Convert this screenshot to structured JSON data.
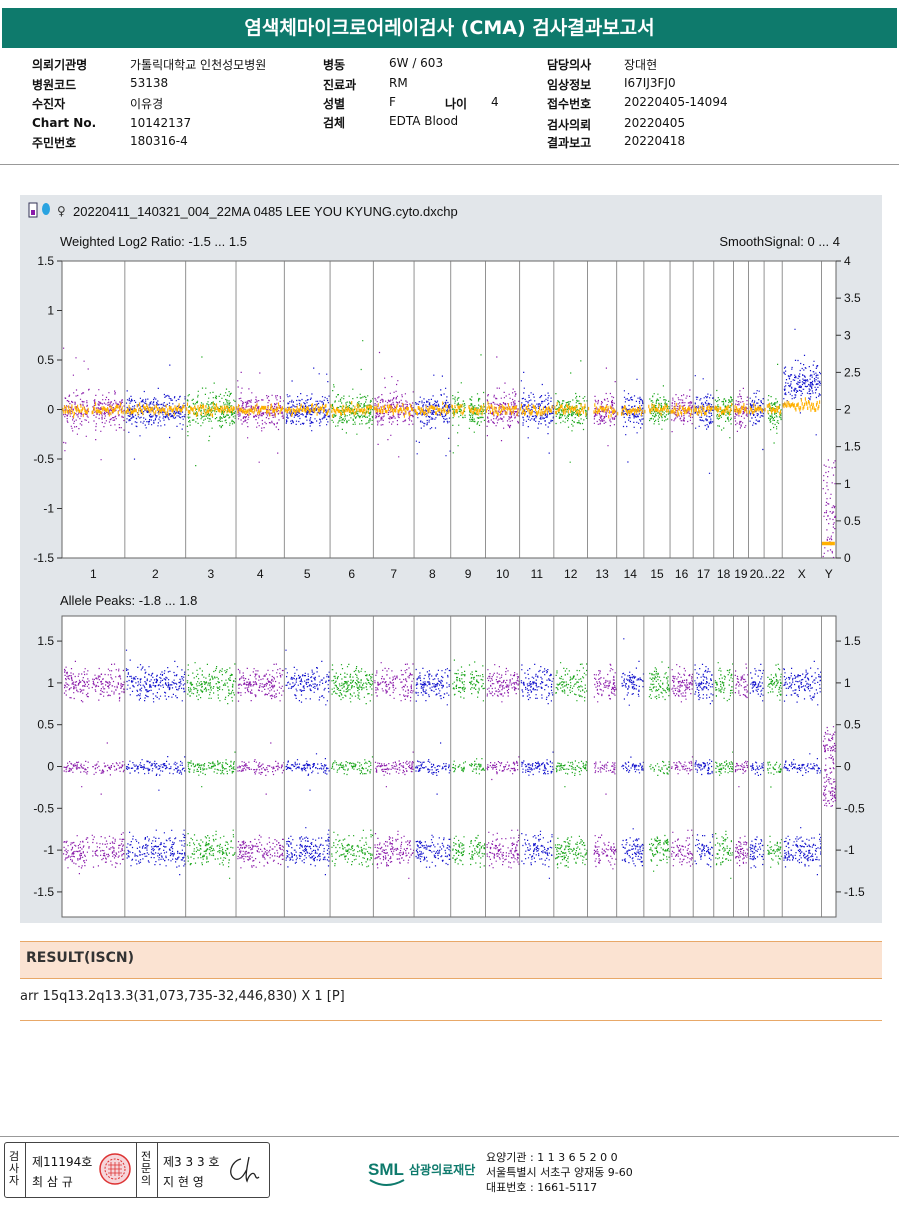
{
  "header": {
    "title": "염색체마이크로어레이검사 (CMA) 검사결과보고서"
  },
  "info": {
    "col1": [
      {
        "label": "의뢰기관명",
        "value": "가톨릭대학교 인천성모병원"
      },
      {
        "label": "병원코드",
        "value": "53138"
      },
      {
        "label": "수진자",
        "value": "이유경"
      },
      {
        "label": "Chart No.",
        "value": "10142137"
      },
      {
        "label": "주민번호",
        "value": "180316-4"
      }
    ],
    "col2": [
      {
        "label": "병동",
        "value": "6W / 603"
      },
      {
        "label": "진료과",
        "value": "RM"
      },
      {
        "label": "성별",
        "value": "F"
      },
      {
        "label": "검체",
        "value": "EDTA Blood"
      }
    ],
    "age": {
      "label": "나이",
      "value": "4"
    },
    "col3": [
      {
        "label": "담당의사",
        "value": "장대현"
      },
      {
        "label": "임상정보",
        "value": "I67IJ3FJ0"
      },
      {
        "label": "접수번호",
        "value": "20220405-14094"
      },
      {
        "label": "검사의뢰",
        "value": "20220405"
      },
      {
        "label": "결과보고",
        "value": "20220418"
      }
    ]
  },
  "chart_data": [
    {
      "type": "scatter",
      "file_name": "20220411_140321_004_22MA 0485 LEE YOU KYUNG.cyto.dxchp",
      "title": "Weighted Log2 Ratio: -1.5 ... 1.5",
      "right_title": "SmoothSignal: 0 ... 4",
      "ylim": [
        -1.5,
        1.5
      ],
      "yticks": [
        "1.5",
        "1",
        "0.5",
        "0",
        "-0.5",
        "-1",
        "-1.5"
      ],
      "y2lim": [
        0,
        4
      ],
      "y2ticks": [
        "4",
        "3.5",
        "3",
        "2.5",
        "2",
        "1.5",
        "1",
        "0.5",
        "0"
      ],
      "categories": [
        "1",
        "2",
        "3",
        "4",
        "5",
        "6",
        "7",
        "8",
        "9",
        "10",
        "11",
        "12",
        "13",
        "14",
        "15",
        "16",
        "17",
        "18",
        "19",
        "20",
        "...22",
        "X",
        "Y"
      ]
    },
    {
      "type": "scatter",
      "title": "Allele Peaks: -1.8 ... 1.8",
      "ylim": [
        -1.8,
        1.8
      ],
      "yticks": [
        "1.5",
        "1",
        "0.5",
        "0",
        "-0.5",
        "-1",
        "-1.5"
      ],
      "y2ticks": [
        "1.5",
        "1",
        "0.5",
        "0",
        "-0.5",
        "-1",
        "-1.5"
      ]
    }
  ],
  "colors": {
    "green": "#1aa61a",
    "blue": "#1010cc",
    "purple": "#8a1aaa",
    "orange": "#ffb000",
    "teal": "#0e7a6c"
  },
  "result": {
    "heading": "RESULT(ISCN)",
    "text": "arr 15q13.2q13.3(31,073,735-32,446,830) X 1 [P]"
  },
  "footer": {
    "sign1_vertical": "검사자",
    "sign1_no": "제11194호",
    "sign1_name": "최 삼 규",
    "sign2_vertical": "전문의",
    "sign2_no": "제3 3 3 호",
    "sign2_name": "지 현 영",
    "logo_text": "SML",
    "logo_org": "삼광의료재단",
    "addr1": "요양기관 : 1 1 3 6 5 2 0 0",
    "addr2": "서울특별시 서초구 양재동 9-60",
    "addr3": "대표번호 : 1661-5117"
  }
}
